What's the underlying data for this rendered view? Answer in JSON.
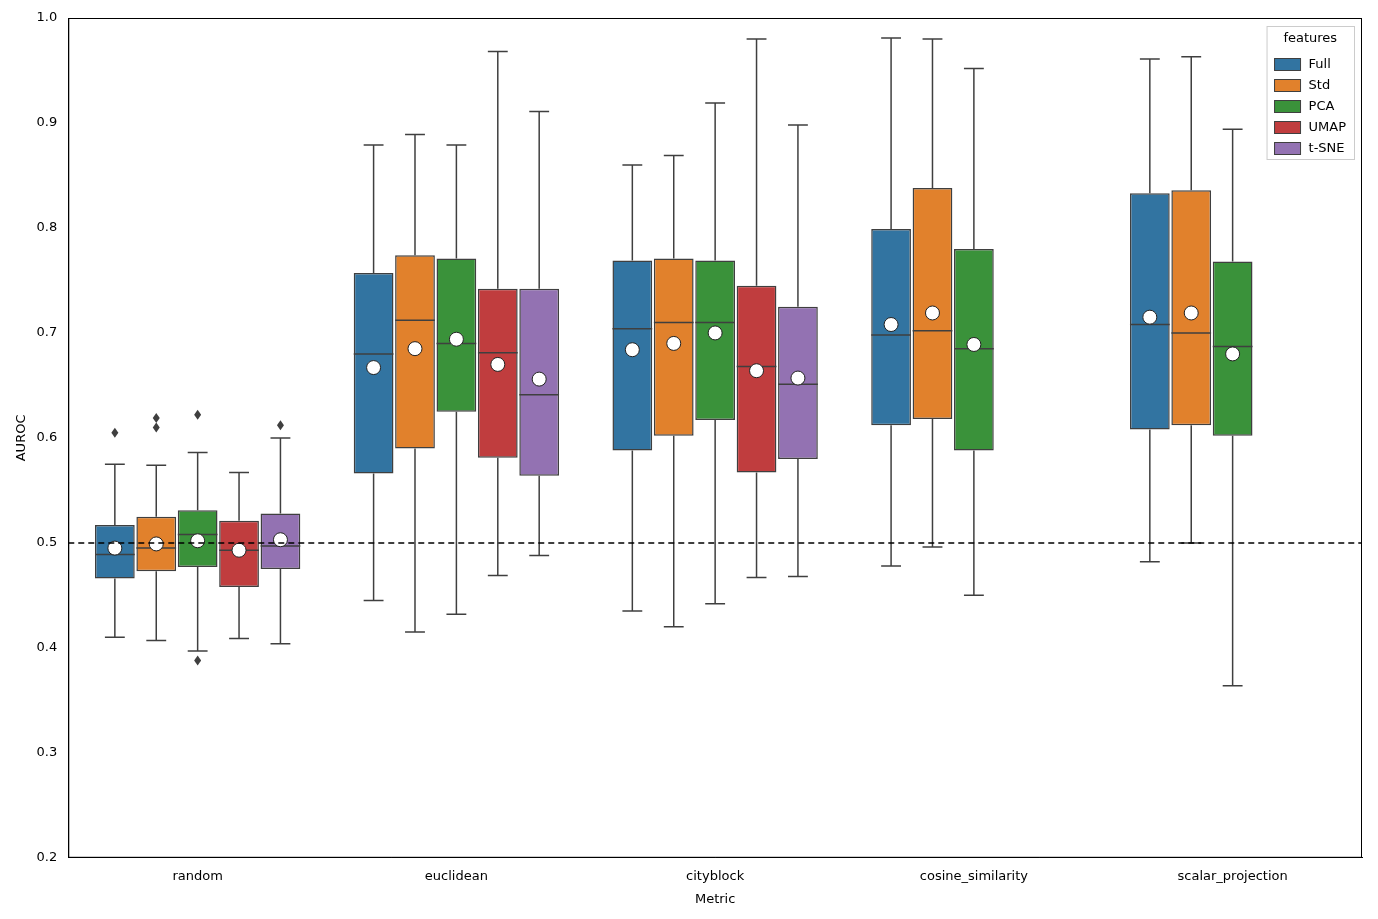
{
  "chart_data": {
    "type": "box",
    "x_label": "Metric",
    "y_label": "AUROC",
    "categories": [
      "random",
      "euclidean",
      "cityblock",
      "cosine_similarity",
      "scalar_projection"
    ],
    "legend_title": "features",
    "legend": "upper right",
    "grid": false,
    "ylim": [
      0.2,
      1.0
    ],
    "yticks": [
      0.2,
      0.3,
      0.4,
      0.5,
      0.6,
      0.7,
      0.8,
      0.9,
      {
        "value": 1.0,
        "label": "1.0"
      }
    ],
    "reference_line": 0.5,
    "series": [
      {
        "name": "Full",
        "color": "#3274a1",
        "values": [
          {
            "min": 0.41,
            "q1": 0.466,
            "median": 0.489,
            "q3": 0.517,
            "max": 0.575,
            "mean": 0.495,
            "outliers": [
              0.605
            ]
          },
          {
            "min": 0.445,
            "q1": 0.566,
            "median": 0.68,
            "q3": 0.757,
            "max": 0.879,
            "mean": 0.667,
            "outliers": []
          },
          {
            "min": 0.435,
            "q1": 0.588,
            "median": 0.704,
            "q3": 0.769,
            "max": 0.86,
            "mean": 0.684,
            "outliers": []
          },
          {
            "min": 0.478,
            "q1": 0.612,
            "median": 0.698,
            "q3": 0.799,
            "max": 0.981,
            "mean": 0.708,
            "outliers": []
          },
          {
            "min": 0.482,
            "q1": 0.608,
            "median": 0.708,
            "q3": 0.833,
            "max": 0.961,
            "mean": 0.715,
            "outliers": []
          }
        ]
      },
      {
        "name": "Std",
        "color": "#e1812c",
        "values": [
          {
            "min": 0.407,
            "q1": 0.473,
            "median": 0.495,
            "q3": 0.525,
            "max": 0.574,
            "mean": 0.499,
            "outliers": [
              0.61,
              0.619
            ]
          },
          {
            "min": 0.415,
            "q1": 0.59,
            "median": 0.712,
            "q3": 0.774,
            "max": 0.889,
            "mean": 0.685,
            "outliers": []
          },
          {
            "min": 0.42,
            "q1": 0.602,
            "median": 0.71,
            "q3": 0.771,
            "max": 0.869,
            "mean": 0.69,
            "outliers": []
          },
          {
            "min": 0.496,
            "q1": 0.618,
            "median": 0.702,
            "q3": 0.838,
            "max": 0.98,
            "mean": 0.719,
            "outliers": []
          },
          {
            "min": 0.5,
            "q1": 0.612,
            "median": 0.7,
            "q3": 0.836,
            "max": 0.963,
            "mean": 0.719,
            "outliers": []
          }
        ]
      },
      {
        "name": "PCA",
        "color": "#3a923a",
        "values": [
          {
            "min": 0.397,
            "q1": 0.477,
            "median": 0.508,
            "q3": 0.531,
            "max": 0.586,
            "mean": 0.502,
            "outliers": [
              0.622,
              0.388
            ]
          },
          {
            "min": 0.432,
            "q1": 0.625,
            "median": 0.69,
            "q3": 0.771,
            "max": 0.879,
            "mean": 0.694,
            "outliers": []
          },
          {
            "min": 0.442,
            "q1": 0.617,
            "median": 0.71,
            "q3": 0.769,
            "max": 0.919,
            "mean": 0.7,
            "outliers": []
          },
          {
            "min": 0.45,
            "q1": 0.588,
            "median": 0.685,
            "q3": 0.78,
            "max": 0.952,
            "mean": 0.689,
            "outliers": []
          },
          {
            "min": 0.364,
            "q1": 0.602,
            "median": 0.687,
            "q3": 0.768,
            "max": 0.894,
            "mean": 0.68,
            "outliers": []
          }
        ]
      },
      {
        "name": "UMAP",
        "color": "#c03d3e",
        "values": [
          {
            "min": 0.409,
            "q1": 0.458,
            "median": 0.493,
            "q3": 0.521,
            "max": 0.567,
            "mean": 0.493,
            "outliers": []
          },
          {
            "min": 0.469,
            "q1": 0.581,
            "median": 0.681,
            "q3": 0.742,
            "max": 0.968,
            "mean": 0.67,
            "outliers": []
          },
          {
            "min": 0.467,
            "q1": 0.567,
            "median": 0.668,
            "q3": 0.745,
            "max": 0.98,
            "mean": 0.664,
            "outliers": []
          },
          null,
          null
        ]
      },
      {
        "name": "t-SNE",
        "color": "#9372b2",
        "values": [
          {
            "min": 0.404,
            "q1": 0.475,
            "median": 0.497,
            "q3": 0.528,
            "max": 0.6,
            "mean": 0.503,
            "outliers": [
              0.612
            ]
          },
          {
            "min": 0.488,
            "q1": 0.564,
            "median": 0.641,
            "q3": 0.742,
            "max": 0.911,
            "mean": 0.656,
            "outliers": []
          },
          {
            "min": 0.468,
            "q1": 0.58,
            "median": 0.651,
            "q3": 0.725,
            "max": 0.898,
            "mean": 0.657,
            "outliers": []
          },
          null,
          null
        ]
      }
    ]
  }
}
